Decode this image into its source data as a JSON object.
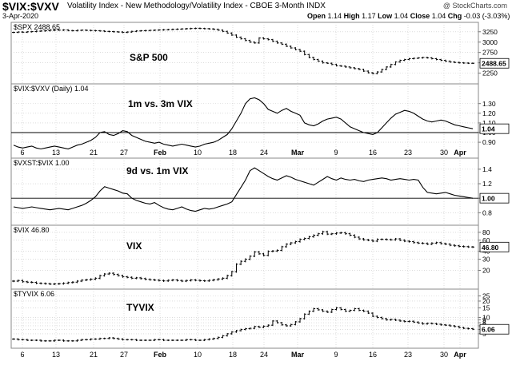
{
  "header": {
    "symbol": "$VIX:$VXV",
    "description": "Volatility Index - New Methodology/Volatility Index - CBOE 3-Month",
    "exchange": "INDX",
    "date": "3-Apr-2020",
    "open_label": "Open",
    "open": "1.14",
    "high_label": "High",
    "high": "1.17",
    "low_label": "Low",
    "low": "1.04",
    "close_label": "Close",
    "close": "1.04",
    "chg_label": "Chg",
    "chg": "-0.03 (-3.03%)",
    "credit": "@ StockCharts.com"
  },
  "colors": {
    "line": "#000000",
    "grid": "#c8c8c8",
    "reference": "#000000",
    "border": "#888888"
  },
  "chart_data": {
    "type": "line",
    "x_ticks": [
      "6",
      "13",
      "21",
      "27",
      "Feb",
      "10",
      "18",
      "24",
      "Mar",
      "9",
      "16",
      "23",
      "30",
      "Apr"
    ],
    "panels": [
      {
        "id": "spx",
        "series_label": "$SPX 2488.65",
        "name": "S&P 500",
        "style": "bar",
        "ylim": [
          2050,
          3420
        ],
        "y_ticks": [
          2250,
          2500,
          2750,
          3000,
          3250
        ],
        "last_value": "2488.65",
        "values": [
          3235,
          3245,
          3240,
          3250,
          3255,
          3265,
          3270,
          3275,
          3285,
          3290,
          3290,
          3295,
          3280,
          3275,
          3285,
          3290,
          3285,
          3280,
          3275,
          3270,
          3260,
          3255,
          3250,
          3245,
          3235,
          3245,
          3260,
          3270,
          3275,
          3280,
          3285,
          3290,
          3295,
          3300,
          3305,
          3310,
          3315,
          3320,
          3325,
          3330,
          3335,
          3330,
          3325,
          3320,
          3310,
          3290,
          3260,
          3220,
          3170,
          3120,
          3080,
          3040,
          3000,
          2980,
          3100,
          3080,
          3060,
          3020,
          2980,
          2950,
          2900,
          2860,
          2820,
          2780,
          2700,
          2630,
          2580,
          2540,
          2500,
          2490,
          2460,
          2430,
          2420,
          2400,
          2380,
          2360,
          2340,
          2300,
          2260,
          2240,
          2280,
          2340,
          2400,
          2460,
          2520,
          2560,
          2580,
          2600,
          2610,
          2620,
          2630,
          2620,
          2600,
          2580,
          2560,
          2540,
          2520,
          2510,
          2500,
          2495,
          2490,
          2489
        ]
      },
      {
        "id": "vix-vxv",
        "series_label": "$VIX:$VXV (Daily) 1.04",
        "name": "1m vs. 3m VIX",
        "style": "line",
        "ylim": [
          0.76,
          1.48
        ],
        "y_ticks": [
          0.9,
          1.0,
          1.1,
          1.2,
          1.3
        ],
        "reference": 1.0,
        "last_value": "1.04",
        "values": [
          0.87,
          0.85,
          0.84,
          0.85,
          0.86,
          0.84,
          0.83,
          0.84,
          0.85,
          0.86,
          0.85,
          0.84,
          0.83,
          0.85,
          0.87,
          0.88,
          0.9,
          0.92,
          0.95,
          1.0,
          1.01,
          0.98,
          0.97,
          0.99,
          1.02,
          1.01,
          0.97,
          0.95,
          0.93,
          0.91,
          0.9,
          0.89,
          0.9,
          0.88,
          0.87,
          0.86,
          0.87,
          0.88,
          0.87,
          0.86,
          0.85,
          0.86,
          0.88,
          0.89,
          0.9,
          0.92,
          0.95,
          0.98,
          1.04,
          1.12,
          1.2,
          1.3,
          1.35,
          1.36,
          1.34,
          1.3,
          1.24,
          1.22,
          1.2,
          1.23,
          1.25,
          1.22,
          1.2,
          1.18,
          1.1,
          1.08,
          1.07,
          1.09,
          1.12,
          1.14,
          1.15,
          1.16,
          1.14,
          1.1,
          1.06,
          1.04,
          1.02,
          1.0,
          0.99,
          0.98,
          1.0,
          1.05,
          1.1,
          1.15,
          1.19,
          1.21,
          1.23,
          1.22,
          1.2,
          1.17,
          1.14,
          1.12,
          1.11,
          1.12,
          1.13,
          1.12,
          1.1,
          1.08,
          1.07,
          1.06,
          1.05,
          1.04
        ]
      },
      {
        "id": "vxst-vix",
        "series_label": "$VXST:$VIX 1.00",
        "name": "9d vs. 1m VIX",
        "style": "line",
        "ylim": [
          0.66,
          1.52
        ],
        "y_ticks": [
          0.8,
          1.0,
          1.2,
          1.4
        ],
        "reference": 1.0,
        "last_value": "1.00",
        "values": [
          0.88,
          0.87,
          0.86,
          0.87,
          0.88,
          0.87,
          0.86,
          0.85,
          0.84,
          0.85,
          0.86,
          0.85,
          0.84,
          0.86,
          0.88,
          0.9,
          0.93,
          0.97,
          1.02,
          1.1,
          1.16,
          1.14,
          1.12,
          1.1,
          1.07,
          1.06,
          1.0,
          0.97,
          0.95,
          0.93,
          0.92,
          0.94,
          0.9,
          0.87,
          0.85,
          0.84,
          0.86,
          0.88,
          0.85,
          0.83,
          0.82,
          0.84,
          0.86,
          0.85,
          0.86,
          0.88,
          0.9,
          0.92,
          0.95,
          1.05,
          1.15,
          1.25,
          1.38,
          1.42,
          1.38,
          1.34,
          1.3,
          1.27,
          1.25,
          1.28,
          1.31,
          1.29,
          1.26,
          1.24,
          1.22,
          1.2,
          1.18,
          1.22,
          1.26,
          1.3,
          1.27,
          1.25,
          1.28,
          1.26,
          1.25,
          1.26,
          1.24,
          1.23,
          1.25,
          1.26,
          1.27,
          1.28,
          1.27,
          1.25,
          1.26,
          1.27,
          1.26,
          1.25,
          1.26,
          1.25,
          1.15,
          1.08,
          1.07,
          1.06,
          1.07,
          1.08,
          1.06,
          1.04,
          1.03,
          1.02,
          1.01,
          1.0
        ]
      },
      {
        "id": "vix",
        "series_label": "$VIX 46.80",
        "name": "VIX",
        "style": "bar",
        "log": true,
        "ylim": [
          11,
          95
        ],
        "y_ticks": [
          20,
          30,
          40,
          60,
          80
        ],
        "last_value": "46.80",
        "values": [
          13.5,
          13.8,
          13.2,
          13.0,
          12.9,
          12.5,
          12.4,
          12.3,
          12.1,
          12.2,
          12.3,
          12.5,
          12.8,
          13.0,
          13.5,
          14.0,
          14.2,
          14.5,
          15.0,
          16.5,
          17.5,
          18.0,
          17.2,
          16.5,
          15.8,
          15.5,
          15.0,
          15.2,
          14.8,
          14.4,
          14.2,
          14.0,
          13.8,
          13.6,
          13.9,
          14.1,
          13.8,
          13.5,
          13.8,
          14.1,
          13.9,
          13.7,
          13.6,
          13.9,
          14.2,
          14.6,
          15.0,
          16.5,
          19.0,
          25.0,
          27.8,
          30.0,
          33.5,
          39.2,
          36.5,
          34.5,
          40.0,
          40.5,
          41.5,
          47.3,
          52.0,
          54.5,
          57.0,
          62.0,
          64.0,
          68.0,
          72.0,
          76.0,
          82.0,
          75.0,
          76.0,
          78.0,
          79.0,
          76.0,
          72.0,
          67.0,
          63.0,
          61.0,
          60.0,
          58.0,
          62.0,
          62.0,
          61.5,
          61.0,
          63.0,
          60.0,
          58.0,
          57.0,
          55.0,
          54.0,
          53.5,
          52.0,
          54.0,
          55.0,
          53.0,
          52.0,
          50.0,
          49.0,
          48.0,
          47.5,
          47.0,
          46.8
        ]
      },
      {
        "id": "tyvix",
        "series_label": "$TYVIX 6.06",
        "name": "TYVIX",
        "style": "bar",
        "log": true,
        "ylim": [
          3.0,
          30
        ],
        "y_ticks": [
          5,
          6,
          7,
          8,
          9,
          10,
          15,
          20,
          25
        ],
        "last_value": "6.06",
        "values": [
          4.0,
          3.9,
          3.9,
          3.8,
          3.8,
          3.8,
          3.7,
          3.7,
          3.7,
          3.8,
          3.8,
          3.7,
          3.7,
          3.7,
          3.8,
          3.9,
          3.9,
          4.0,
          4.0,
          4.1,
          4.1,
          4.2,
          4.1,
          4.0,
          3.9,
          3.9,
          3.9,
          3.8,
          3.8,
          3.8,
          3.8,
          3.9,
          3.9,
          3.8,
          3.8,
          3.8,
          3.8,
          3.8,
          3.9,
          3.9,
          3.8,
          3.8,
          3.9,
          4.0,
          4.1,
          4.3,
          4.6,
          5.0,
          5.4,
          5.7,
          6.0,
          6.2,
          6.3,
          6.8,
          6.6,
          6.9,
          7.2,
          8.6,
          8.0,
          7.3,
          7.0,
          7.4,
          8.3,
          9.5,
          11.5,
          13.0,
          14.5,
          13.8,
          13.0,
          12.5,
          14.0,
          15.0,
          14.0,
          13.0,
          13.5,
          14.5,
          13.5,
          13.0,
          12.0,
          10.5,
          10.0,
          9.5,
          9.0,
          9.2,
          8.9,
          8.6,
          8.4,
          8.5,
          8.2,
          7.9,
          7.6,
          7.8,
          7.7,
          7.5,
          7.3,
          7.2,
          7.0,
          6.8,
          6.5,
          6.3,
          6.2,
          6.06
        ]
      }
    ]
  }
}
